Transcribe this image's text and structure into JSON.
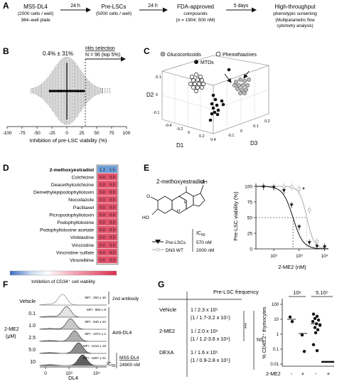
{
  "panelA": {
    "steps": [
      {
        "title": "MS5-DL4",
        "sub1": "(2000 cells / well)",
        "sub2": "384–well plate"
      },
      {
        "title": "Pre-LSCs",
        "sub1": "(5000 cells / well)",
        "sub2": ""
      },
      {
        "title": "FDA-approved",
        "sub1": "compounds",
        "sub2": "(n = 1904; 500 nM)"
      },
      {
        "title": "High-throughput",
        "sub1": "phenotypic screening",
        "sub2": "(Multiparametric flow",
        "sub3": "cytometry analysis)"
      }
    ],
    "arrows": [
      "24 h",
      "24 h",
      "5 days"
    ]
  },
  "panelB": {
    "label": "B",
    "stat": "0.4% ± 31%",
    "hits_title": "Hits selection",
    "hits_detail": "N = 96 (top 5%)",
    "xlabel": "Inhibition of pre-LSC viability (%)",
    "ticks": [
      "-100",
      "-75",
      "-50",
      "-25",
      "0",
      "25",
      "50",
      "75",
      "100"
    ]
  },
  "panelC": {
    "label": "C",
    "legend": [
      "Glucocorticoids",
      "Phenothiazines",
      "MTDs"
    ],
    "axes": {
      "d1": "D1",
      "d2": "D2",
      "d3": "D3"
    },
    "d1_ticks": [
      "-0.4",
      "-0.2",
      "0",
      "0.2",
      "0.4"
    ],
    "d2_ticks": [
      "-0.1",
      "0",
      "0.1"
    ],
    "d3_ticks": [
      "-0.1",
      "0",
      "0.1",
      "0.2"
    ]
  },
  "panelD": {
    "label": "D",
    "header_values": [
      "1.3",
      "1.5"
    ],
    "compounds": [
      {
        "name": "2-methoxyestradiol",
        "v1": "1.3",
        "v2": "1.5",
        "bold": true
      },
      {
        "name": "Colchicine",
        "v1": "0.0",
        "v2": "0.0"
      },
      {
        "name": "Deacethylcolchicine",
        "v1": "0.0",
        "v2": "0.0"
      },
      {
        "name": "Demethylepipodophyllotoxin",
        "v1": "0.0",
        "v2": "0.0"
      },
      {
        "name": "Nocodazole",
        "v1": "0.0",
        "v2": "0.0"
      },
      {
        "name": "Paclitaxel",
        "v1": "0.0",
        "v2": "0.0"
      },
      {
        "name": "Picropodophyllotoxin",
        "v1": "0.0",
        "v2": "0.0"
      },
      {
        "name": "Podophyllotoxine",
        "v1": "0.0",
        "v2": "0.0"
      },
      {
        "name": "Podophyllotoxine acetate",
        "v1": "0.0",
        "v2": "0.0"
      },
      {
        "name": "Vinblastine",
        "v1": "0.0",
        "v2": "0.0"
      },
      {
        "name": "Vincristine",
        "v1": "0.0",
        "v2": "0.0"
      },
      {
        "name": "Vincristine sulfate",
        "v1": "0.0",
        "v2": "0.0"
      },
      {
        "name": "Vinorelbine",
        "v1": "0.0",
        "v2": "0.0"
      }
    ],
    "scale_label": "Inhibition of CD34⁺ cell viability",
    "colors": {
      "blue": "#6f9fd8",
      "red": "#e0526a"
    }
  },
  "panelE": {
    "label": "E",
    "compound": "2-methoxyestradiol",
    "ic50_header": "IC50",
    "legend": [
      {
        "name": "Pre-LSCs",
        "ic50": "570 nM"
      },
      {
        "name": "DN3 WT",
        "ic50": "2000 nM"
      }
    ],
    "ylabel": "Pre-LSC viability (%)",
    "xlabel": "2-ME2 (nM)",
    "yticks": [
      "0",
      "25",
      "50",
      "75",
      "100"
    ],
    "xticks": [
      "10²",
      "10³",
      "10⁴"
    ],
    "star": "*",
    "atoms": {
      "oh": "OH",
      "o": "O",
      "ho": "HO",
      "h": "H"
    }
  },
  "panelF": {
    "label": "F",
    "row_labels": [
      "Vehicle",
      "0.1",
      "1.0",
      "2.5",
      "5.0",
      "10"
    ],
    "group_label": "2-ME2",
    "unit": "(μM)",
    "mfi": [
      "MFI : 284 ± 10",
      "MFI : 883 ± 8",
      "MFI : 940 ± 24",
      "MFI : 1071 ± 2",
      "MFI : 1313 ± 19",
      "MFI : 1597 ± 21"
    ],
    "side_labels": {
      "second": "2nd antibody",
      "anti": "Anti-DL4"
    },
    "ic50_label": "IC50",
    "ic50_cell": "MS5-DL4",
    "ic50_value": "24900 nM",
    "xlabel": "DL4",
    "xticks": [
      "0",
      "10³",
      "10⁵"
    ]
  },
  "panelG": {
    "label": "G",
    "table_header": "Pre-LSC frequency",
    "rows": [
      {
        "name": "Vehicle",
        "freq": "1 / 2.3 x 10⁵",
        "ci": "(1 / 1.7-3.2 x 10⁵)"
      },
      {
        "name": "2-ME2",
        "freq": "1 / 2.0 x 10⁶",
        "ci": "(1 / 1.2-3.6 x 10⁶)"
      },
      {
        "name": "DEXA",
        "freq": "1 / 1.6 x 10⁵",
        "ci": "(1 / 0.9-2.8 x 10⁵)"
      }
    ],
    "sig": "***",
    "ns": "NS",
    "dot_plot": {
      "groups": [
        "10⁶",
        "5.10⁵"
      ],
      "ylabel": "% CD45.2⁺ thymocytes",
      "yticks": [
        "100",
        "10",
        "1",
        "0.1",
        "0.01"
      ],
      "x_row_label": "2-ME2",
      "xticks": [
        "-",
        "+",
        "-",
        "+"
      ]
    }
  }
}
